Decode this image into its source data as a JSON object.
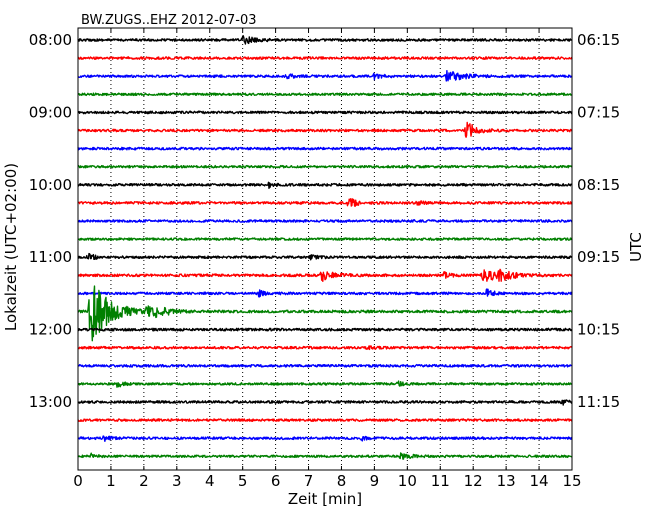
{
  "chart_data": {
    "type": "line",
    "title": "BW.ZUGS..EHZ 2012-07-03",
    "xlabel": "Zeit  [min]",
    "ylabel_left": "Lokalzeit (UTC+02:00)",
    "ylabel_right": "UTC",
    "xlim": [
      0,
      15
    ],
    "x_ticks": [
      0,
      1,
      2,
      3,
      4,
      5,
      6,
      7,
      8,
      9,
      10,
      11,
      12,
      13,
      14,
      15
    ],
    "grid": "vertical dotted",
    "trace_interval_min": 15,
    "colors": [
      "#000000",
      "#ff0000",
      "#0000ff",
      "#008000"
    ],
    "left_tick_labels": [
      {
        "row": 0,
        "label": "08:00"
      },
      {
        "row": 4,
        "label": "09:00"
      },
      {
        "row": 8,
        "label": "10:00"
      },
      {
        "row": 12,
        "label": "11:00"
      },
      {
        "row": 16,
        "label": "12:00"
      },
      {
        "row": 20,
        "label": "13:00"
      }
    ],
    "right_tick_labels": [
      {
        "row": 0,
        "label": "06:15"
      },
      {
        "row": 4,
        "label": "07:15"
      },
      {
        "row": 8,
        "label": "08:15"
      },
      {
        "row": 12,
        "label": "09:15"
      },
      {
        "row": 16,
        "label": "10:15"
      },
      {
        "row": 20,
        "label": "11:15"
      }
    ],
    "traces": [
      {
        "start": "08:00",
        "color": "#000000",
        "noise": 0.28,
        "events": [
          {
            "t": 5.0,
            "amp": 0.9,
            "dur": 0.35
          }
        ]
      },
      {
        "start": "08:15",
        "color": "#ff0000",
        "noise": 0.28,
        "events": []
      },
      {
        "start": "08:30",
        "color": "#0000ff",
        "noise": 0.28,
        "events": [
          {
            "t": 6.3,
            "amp": 0.7,
            "dur": 0.2
          },
          {
            "t": 9.0,
            "amp": 0.6,
            "dur": 0.2
          },
          {
            "t": 11.2,
            "amp": 1.2,
            "dur": 0.5
          }
        ]
      },
      {
        "start": "08:45",
        "color": "#008000",
        "noise": 0.26,
        "events": []
      },
      {
        "start": "09:00",
        "color": "#000000",
        "noise": 0.28,
        "events": []
      },
      {
        "start": "09:15",
        "color": "#ff0000",
        "noise": 0.28,
        "events": [
          {
            "t": 11.8,
            "amp": 2.6,
            "dur": 0.25
          }
        ]
      },
      {
        "start": "09:30",
        "color": "#0000ff",
        "noise": 0.28,
        "events": []
      },
      {
        "start": "09:45",
        "color": "#008000",
        "noise": 0.26,
        "events": []
      },
      {
        "start": "10:00",
        "color": "#000000",
        "noise": 0.28,
        "events": [
          {
            "t": 5.8,
            "amp": 0.6,
            "dur": 0.15
          }
        ]
      },
      {
        "start": "10:15",
        "color": "#ff0000",
        "noise": 0.28,
        "events": [
          {
            "t": 8.2,
            "amp": 1.2,
            "dur": 0.25
          },
          {
            "t": 10.3,
            "amp": 0.5,
            "dur": 0.15
          }
        ]
      },
      {
        "start": "10:30",
        "color": "#0000ff",
        "noise": 0.28,
        "events": []
      },
      {
        "start": "10:45",
        "color": "#008000",
        "noise": 0.26,
        "events": []
      },
      {
        "start": "11:00",
        "color": "#000000",
        "noise": 0.28,
        "events": [
          {
            "t": 0.3,
            "amp": 0.8,
            "dur": 0.2
          },
          {
            "t": 7.0,
            "amp": 0.5,
            "dur": 0.2
          }
        ]
      },
      {
        "start": "11:15",
        "color": "#ff0000",
        "noise": 0.3,
        "events": [
          {
            "t": 7.4,
            "amp": 1.3,
            "dur": 0.3
          },
          {
            "t": 11.1,
            "amp": 0.8,
            "dur": 0.15
          },
          {
            "t": 12.3,
            "amp": 1.4,
            "dur": 0.5
          },
          {
            "t": 12.8,
            "amp": 1.0,
            "dur": 0.3
          }
        ]
      },
      {
        "start": "11:30",
        "color": "#0000ff",
        "noise": 0.28,
        "events": [
          {
            "t": 5.5,
            "amp": 0.6,
            "dur": 0.2
          },
          {
            "t": 12.4,
            "amp": 0.9,
            "dur": 0.2
          }
        ]
      },
      {
        "start": "11:45",
        "color": "#008000",
        "noise": 0.3,
        "events": [
          {
            "t": 0.35,
            "amp": 8.5,
            "dur": 0.5
          },
          {
            "t": 2.1,
            "amp": 1.5,
            "dur": 0.2
          },
          {
            "t": 2.4,
            "amp": 1.4,
            "dur": 0.3
          }
        ]
      },
      {
        "start": "12:00",
        "color": "#000000",
        "noise": 0.3,
        "events": []
      },
      {
        "start": "12:15",
        "color": "#ff0000",
        "noise": 0.28,
        "events": [
          {
            "t": 8.8,
            "amp": 0.5,
            "dur": 0.15
          }
        ]
      },
      {
        "start": "12:30",
        "color": "#0000ff",
        "noise": 0.28,
        "events": []
      },
      {
        "start": "12:45",
        "color": "#008000",
        "noise": 0.26,
        "events": [
          {
            "t": 1.2,
            "amp": 0.8,
            "dur": 0.15
          },
          {
            "t": 9.7,
            "amp": 0.5,
            "dur": 0.2
          }
        ]
      },
      {
        "start": "13:00",
        "color": "#000000",
        "noise": 0.28,
        "events": [
          {
            "t": 14.7,
            "amp": 0.6,
            "dur": 0.15
          }
        ]
      },
      {
        "start": "13:15",
        "color": "#ff0000",
        "noise": 0.28,
        "events": []
      },
      {
        "start": "13:30",
        "color": "#0000ff",
        "noise": 0.28,
        "events": [
          {
            "t": 0.8,
            "amp": 0.6,
            "dur": 0.15
          },
          {
            "t": 8.6,
            "amp": 0.5,
            "dur": 0.15
          }
        ]
      },
      {
        "start": "13:45",
        "color": "#008000",
        "noise": 0.26,
        "events": [
          {
            "t": 0.4,
            "amp": 0.6,
            "dur": 0.15
          },
          {
            "t": 9.8,
            "amp": 0.6,
            "dur": 0.3
          }
        ]
      }
    ]
  }
}
